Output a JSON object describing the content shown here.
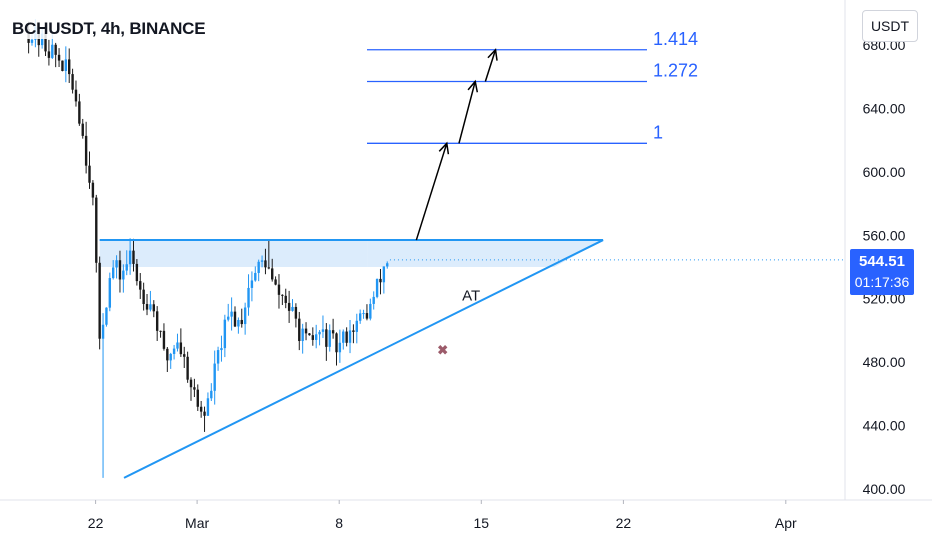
{
  "header": {
    "title": "BCHUSDT, 4h, BINANCE"
  },
  "price_axis": {
    "unit": "USDT"
  },
  "last_price": {
    "value": "544.51",
    "countdown": "01:17:36"
  },
  "colors": {
    "up": "#2196f3",
    "down": "#1a1a1a",
    "trendline": "#2196f3",
    "fib_line": "#2962ff",
    "fib_text": "#2962ff",
    "zone_fill": "#d6e9fb",
    "marker": "#9c5b6a",
    "axis_text": "#131722",
    "last_price_bg": "#2962ff"
  },
  "chart_data": {
    "type": "candlestick",
    "title": "BCHUSDT, 4h, BINANCE",
    "x_ticks": [
      "22",
      "Mar",
      "8",
      "15",
      "22",
      "Apr"
    ],
    "y_ticks": [
      "400.00",
      "440.00",
      "480.00",
      "520.00",
      "560.00",
      "600.00",
      "640.00",
      "680.00"
    ],
    "ylim": [
      392,
      700
    ],
    "x_range_days": [
      -1.5,
      38
    ],
    "x_axis_start": "Feb 20",
    "grid": false,
    "last_price": 544.51,
    "resistance_level": 557,
    "zone": [
      540,
      557
    ],
    "fib_levels": [
      {
        "label": "1.414",
        "value": 677
      },
      {
        "label": "1.272",
        "value": 657
      },
      {
        "label": "1",
        "value": 618
      }
    ],
    "ascending_trendline": [
      {
        "day": 3.4,
        "price": 407
      },
      {
        "day": 27,
        "price": 557
      }
    ],
    "annotations": [
      {
        "text": "AT",
        "day": 20.5,
        "price": 522
      },
      {
        "text": "✖",
        "day": 19.1,
        "price": 488
      }
    ],
    "target_arrows": [
      {
        "from": {
          "day": 17.8,
          "price": 557
        },
        "to": {
          "day": 19.3,
          "price": 618
        }
      },
      {
        "from": {
          "day": 19.9,
          "price": 618
        },
        "to": {
          "day": 20.7,
          "price": 657
        }
      },
      {
        "from": {
          "day": 21.2,
          "price": 657
        },
        "to": {
          "day": 21.7,
          "price": 677
        }
      }
    ]
  }
}
